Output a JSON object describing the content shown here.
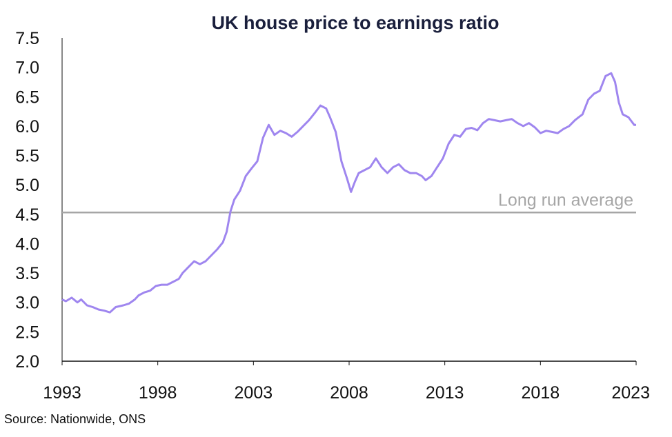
{
  "chart_data": {
    "type": "line",
    "title": "UK house price to earnings ratio",
    "source": "Source: Nationwide, ONS",
    "xlabel": "",
    "ylabel": "",
    "xlim": [
      1993,
      2023
    ],
    "ylim": [
      2.0,
      7.5
    ],
    "x_ticks": [
      "1993",
      "1998",
      "2003",
      "2008",
      "2013",
      "2018",
      "2023"
    ],
    "y_ticks": [
      "2.0",
      "2.5",
      "3.0",
      "3.5",
      "4.0",
      "4.5",
      "5.0",
      "5.5",
      "6.0",
      "6.5",
      "7.0",
      "7.5"
    ],
    "grid": false,
    "series": [
      {
        "color": "#9f86ef",
        "x": [
          1993.0,
          1993.2,
          1993.5,
          1993.8,
          1994.0,
          1994.3,
          1994.6,
          1994.9,
          1995.2,
          1995.5,
          1995.8,
          1996.2,
          1996.5,
          1996.8,
          1997.0,
          1997.3,
          1997.6,
          1997.9,
          1998.2,
          1998.5,
          1998.8,
          1999.1,
          1999.3,
          1999.6,
          1999.9,
          2000.2,
          2000.5,
          2000.8,
          2001.1,
          2001.4,
          2001.6,
          2001.8,
          2002.0,
          2002.3,
          2002.6,
          2002.9,
          2003.2,
          2003.5,
          2003.8,
          2004.1,
          2004.4,
          2004.7,
          2005.0,
          2005.3,
          2005.6,
          2005.9,
          2006.2,
          2006.5,
          2006.8,
          2007.0,
          2007.3,
          2007.6,
          2007.9,
          2008.1,
          2008.3,
          2008.5,
          2008.8,
          2009.1,
          2009.4,
          2009.7,
          2010.0,
          2010.3,
          2010.6,
          2010.9,
          2011.2,
          2011.5,
          2011.8,
          2012.0,
          2012.3,
          2012.6,
          2012.9,
          2013.2,
          2013.5,
          2013.8,
          2014.1,
          2014.4,
          2014.7,
          2015.0,
          2015.3,
          2015.6,
          2015.9,
          2016.2,
          2016.5,
          2016.8,
          2017.1,
          2017.4,
          2017.7,
          2018.0,
          2018.3,
          2018.6,
          2018.9,
          2019.2,
          2019.5,
          2019.8,
          2020.0,
          2020.2,
          2020.5,
          2020.8,
          2021.1,
          2021.4,
          2021.7,
          2021.9,
          2022.1,
          2022.3,
          2022.6,
          2022.9,
          2023.0
        ],
        "y": [
          3.05,
          3.02,
          3.08,
          3.0,
          3.05,
          2.95,
          2.92,
          2.88,
          2.86,
          2.83,
          2.92,
          2.95,
          2.98,
          3.05,
          3.12,
          3.17,
          3.2,
          3.28,
          3.3,
          3.3,
          3.35,
          3.4,
          3.5,
          3.6,
          3.7,
          3.65,
          3.7,
          3.8,
          3.9,
          4.02,
          4.2,
          4.55,
          4.75,
          4.9,
          5.15,
          5.28,
          5.4,
          5.8,
          6.02,
          5.85,
          5.92,
          5.88,
          5.82,
          5.9,
          6.0,
          6.1,
          6.22,
          6.35,
          6.3,
          6.15,
          5.9,
          5.4,
          5.1,
          4.88,
          5.05,
          5.2,
          5.25,
          5.3,
          5.45,
          5.3,
          5.2,
          5.3,
          5.35,
          5.25,
          5.2,
          5.2,
          5.15,
          5.08,
          5.15,
          5.3,
          5.45,
          5.7,
          5.85,
          5.82,
          5.95,
          5.97,
          5.93,
          6.05,
          6.12,
          6.1,
          6.08,
          6.1,
          6.12,
          6.05,
          6.0,
          6.05,
          5.98,
          5.88,
          5.92,
          5.9,
          5.88,
          5.95,
          6.0,
          6.1,
          6.15,
          6.2,
          6.45,
          6.55,
          6.6,
          6.85,
          6.9,
          6.75,
          6.4,
          6.2,
          6.15,
          6.02,
          6.02
        ]
      }
    ],
    "reference_line": {
      "value": 4.53,
      "label": "Long run average",
      "color": "#a6a6a6"
    }
  }
}
